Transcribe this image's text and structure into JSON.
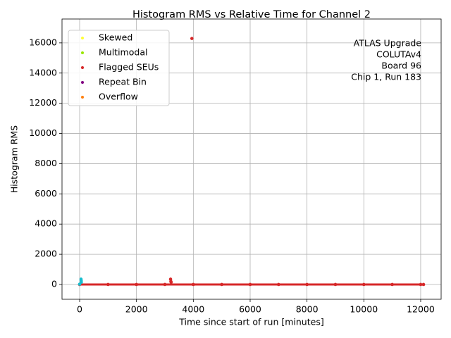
{
  "chart_data": {
    "type": "scatter",
    "title": "Histogram RMS vs Relative Time for Channel 2",
    "xlabel": "Time since start of run [minutes]",
    "ylabel": "Histogram RMS",
    "annotation": [
      "ATLAS Upgrade",
      "COLUTAv4",
      "Board 96",
      "Chip 1, Run 183"
    ],
    "xlim": [
      -620,
      12720
    ],
    "ylim": [
      -980,
      17580
    ],
    "xticks": [
      0,
      2000,
      4000,
      6000,
      8000,
      10000,
      12000
    ],
    "yticks": [
      0,
      2000,
      4000,
      6000,
      8000,
      10000,
      12000,
      14000,
      16000
    ],
    "grid": true,
    "legend": "upper left",
    "series": [
      {
        "color": "#d62728",
        "connect": true,
        "x": [
          0,
          1000,
          2000,
          3000,
          4000,
          5000,
          6000,
          7000,
          8000,
          9000,
          10000,
          11000,
          12000,
          12100
        ],
        "values": [
          0,
          0,
          0,
          0,
          0,
          0,
          0,
          0,
          0,
          0,
          0,
          0,
          0,
          0
        ]
      },
      {
        "color": "#17becf",
        "x": [
          0,
          50,
          55,
          60
        ],
        "values": [
          20,
          350,
          250,
          150
        ]
      },
      {
        "name": "Skewed",
        "color": "#ffff33",
        "x": [],
        "values": []
      },
      {
        "name": "Multimodal",
        "color": "#99e600",
        "x": [],
        "values": []
      },
      {
        "name": "Flagged SEUs",
        "color": "#d62728",
        "x": [
          3950,
          3200,
          3210,
          3220
        ],
        "values": [
          16290,
          350,
          200,
          150
        ]
      },
      {
        "name": "Repeat Bin",
        "color": "#800080",
        "x": [],
        "values": []
      },
      {
        "name": "Overflow",
        "color": "#ff7f0e",
        "x": [],
        "values": []
      }
    ]
  }
}
